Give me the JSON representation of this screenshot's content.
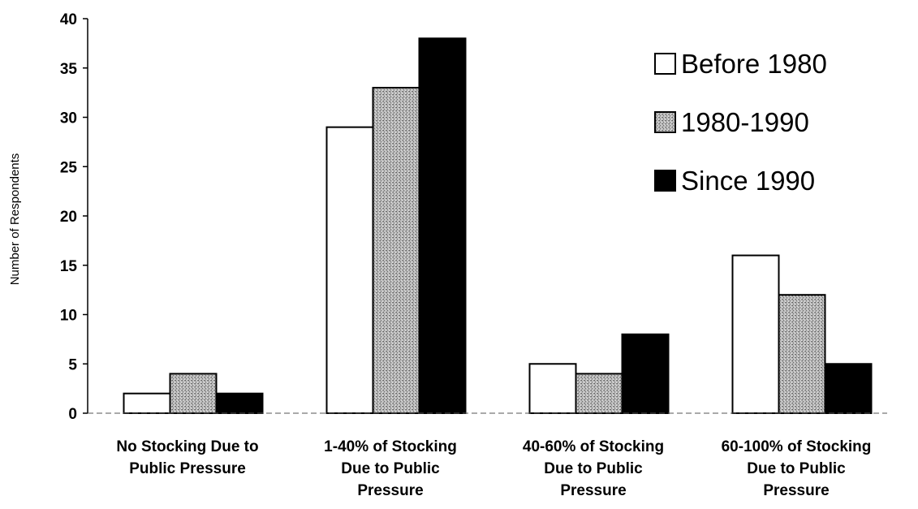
{
  "chart_data": {
    "type": "bar",
    "title": "",
    "xlabel": "",
    "ylabel": "Number of Respondents",
    "ylim": [
      0,
      40
    ],
    "yticks": [
      0,
      5,
      10,
      15,
      20,
      25,
      30,
      35,
      40
    ],
    "grid": false,
    "legend_position": "top-right",
    "categories": [
      [
        "No Stocking Due to",
        "Public Pressure"
      ],
      [
        "1-40% of Stocking",
        "Due to Public",
        "Pressure"
      ],
      [
        "40-60% of Stocking",
        "Due to Public",
        "Pressure"
      ],
      [
        "60-100% of Stocking",
        "Due to Public",
        "Pressure"
      ]
    ],
    "series": [
      {
        "name": "Before 1980",
        "values": [
          2,
          29,
          5,
          16
        ],
        "fill": "#ffffff"
      },
      {
        "name": "1980-1990",
        "values": [
          4,
          33,
          4,
          12
        ],
        "fill": "pattern"
      },
      {
        "name": "Since 1990",
        "values": [
          2,
          38,
          8,
          5
        ],
        "fill": "#000000"
      }
    ]
  }
}
